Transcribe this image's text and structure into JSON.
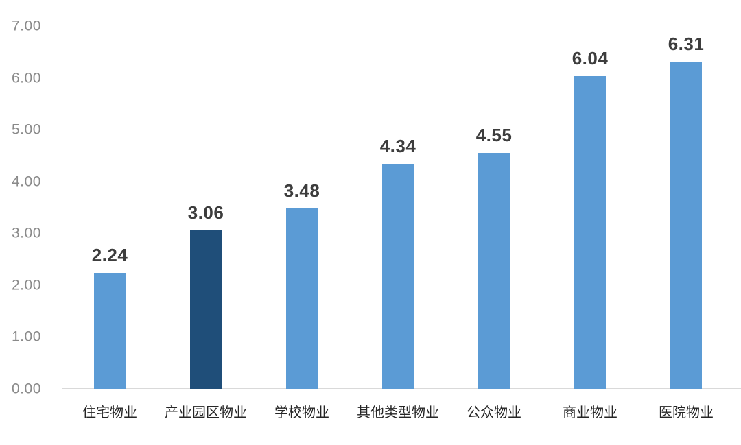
{
  "chart_data": {
    "type": "bar",
    "title": "",
    "xlabel": "",
    "ylabel": "",
    "categories": [
      "住宅物业",
      "产业园区物业",
      "学校物业",
      "其他类型物业",
      "公众物业",
      "商业物业",
      "医院物业"
    ],
    "values": [
      2.24,
      3.06,
      3.48,
      4.34,
      4.55,
      6.04,
      6.31
    ],
    "value_labels": [
      "2.24",
      "3.06",
      "3.48",
      "4.34",
      "4.55",
      "6.04",
      "6.31"
    ],
    "ylim": [
      0,
      7
    ],
    "ytick_labels": [
      "0.00",
      "1.00",
      "2.00",
      "3.00",
      "4.00",
      "5.00",
      "6.00",
      "7.00"
    ],
    "grid": false,
    "legend": false,
    "highlight_index": 1
  },
  "colors": {
    "background": "#ffffff",
    "bar_default": "#5b9bd5",
    "bar_highlight": "#1f4e79",
    "axis_line": "#d9d9d9",
    "tick_label": "#8a8a8a",
    "value_label": "#3d3d3d",
    "category_label": "#262626"
  }
}
